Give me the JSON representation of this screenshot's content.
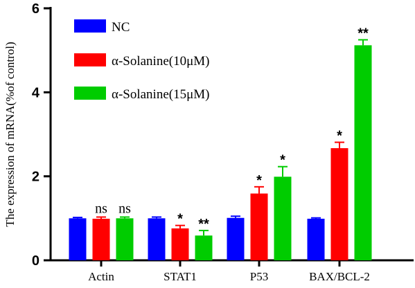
{
  "chart_data": {
    "type": "bar",
    "title": "",
    "xlabel": "",
    "ylabel": "The expression of mRNA(%of control)",
    "ylim": [
      0,
      6
    ],
    "yticks": [
      "0",
      "2",
      "4",
      "6"
    ],
    "categories": [
      "Actin",
      "STAT1",
      "P53",
      "BAX/BCL-2"
    ],
    "legend_position": "top-left",
    "series": [
      {
        "name": "NC",
        "color": "#0000ff",
        "values": [
          1.0,
          1.0,
          1.01,
          0.99
        ],
        "errors": [
          0.02,
          0.03,
          0.04,
          0.02
        ],
        "significance": [
          "",
          "",
          "",
          ""
        ]
      },
      {
        "name": "α-Solanine(10μM)",
        "color": "#ff0000",
        "values": [
          0.99,
          0.76,
          1.59,
          2.67
        ],
        "errors": [
          0.04,
          0.07,
          0.16,
          0.14
        ],
        "significance": [
          "ns",
          "*",
          "*",
          "*"
        ]
      },
      {
        "name": "α-Solanine(15μM)",
        "color": "#00cc00",
        "values": [
          1.0,
          0.59,
          1.99,
          5.12
        ],
        "errors": [
          0.03,
          0.12,
          0.24,
          0.13
        ],
        "significance": [
          "ns",
          "**",
          "*",
          "**"
        ]
      }
    ]
  }
}
